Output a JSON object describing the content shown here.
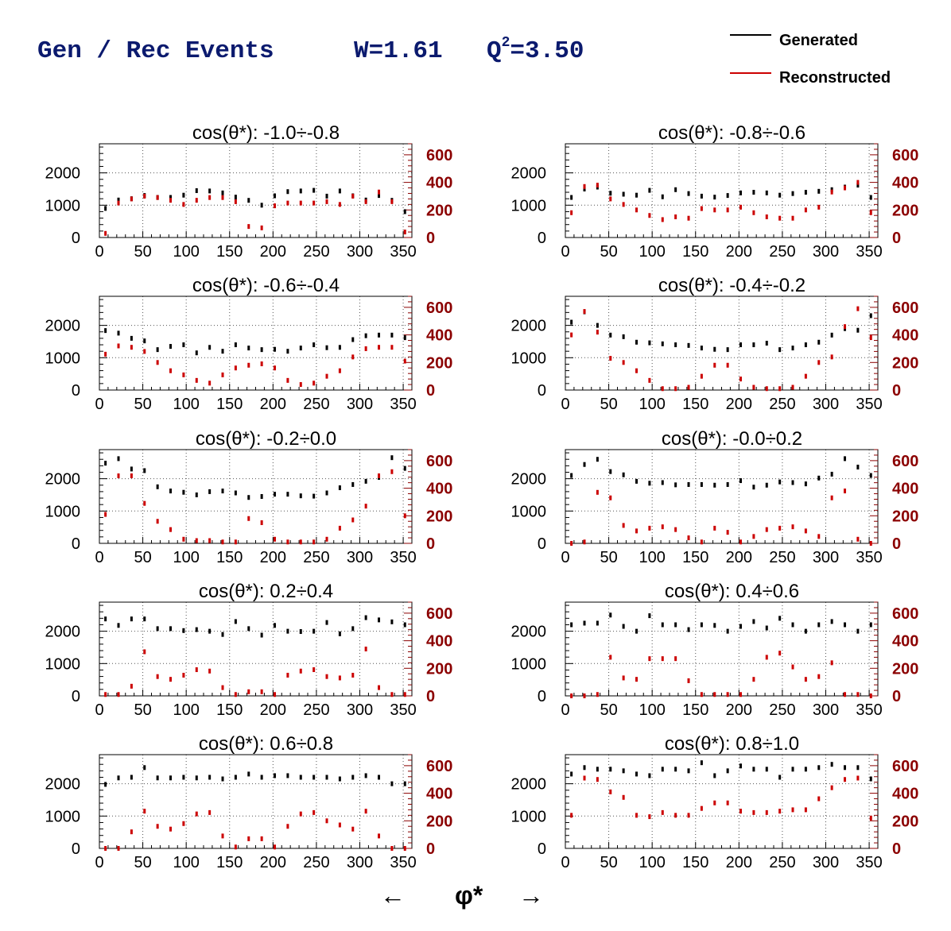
{
  "header": {
    "title_main": "Gen / Rec Events",
    "w_text": "W=1.61",
    "q_prefix": "Q",
    "q_sup": "2",
    "q_value": "=3.50",
    "title_color": "#0b1a6e"
  },
  "legend": {
    "placement": "top-right",
    "items": [
      {
        "label": "Generated",
        "color": "#000000"
      },
      {
        "label": "Reconstructed",
        "color": "#cc0000"
      }
    ]
  },
  "xaxis_footer": {
    "left_arrow": "←",
    "label": "φ*",
    "right_arrow": "→"
  },
  "chart_data": [
    {
      "type": "scatter",
      "title": "cos(θ*): -1.0÷-0.8",
      "xlim": [
        0,
        360
      ],
      "ylim_left": [
        0,
        2900
      ],
      "ylim_right": [
        0,
        680
      ],
      "left_ticks": [
        "0",
        "1000",
        "2000"
      ],
      "right_ticks": [
        "0",
        "200",
        "400",
        "600"
      ],
      "x_ticks": [
        "0",
        "50",
        "100",
        "150",
        "200",
        "250",
        "300",
        "350"
      ],
      "x": [
        7,
        22,
        37,
        52,
        67,
        82,
        97,
        112,
        127,
        142,
        157,
        172,
        187,
        202,
        217,
        232,
        247,
        262,
        277,
        292,
        307,
        322,
        337,
        352
      ],
      "series": [
        {
          "name": "Generated",
          "values": [
            900,
            1160,
            1200,
            1300,
            1240,
            1240,
            1310,
            1450,
            1440,
            1380,
            1250,
            1150,
            1000,
            1290,
            1420,
            1440,
            1460,
            1280,
            1440,
            1290,
            1160,
            1300,
            1150,
            800
          ]
        },
        {
          "name": "Reconstructed",
          "values": [
            30,
            250,
            280,
            300,
            290,
            270,
            240,
            270,
            290,
            290,
            260,
            80,
            70,
            230,
            250,
            250,
            250,
            260,
            240,
            300,
            260,
            330,
            260,
            40
          ]
        }
      ]
    },
    {
      "type": "scatter",
      "title": "cos(θ*): -0.8÷-0.6",
      "xlim": [
        0,
        360
      ],
      "ylim_left": [
        0,
        2900
      ],
      "ylim_right": [
        0,
        680
      ],
      "left_ticks": [
        "0",
        "1000",
        "2000"
      ],
      "right_ticks": [
        "0",
        "200",
        "400",
        "600"
      ],
      "x_ticks": [
        "0",
        "50",
        "100",
        "150",
        "200",
        "250",
        "300",
        "350"
      ],
      "x": [
        7,
        22,
        37,
        52,
        67,
        82,
        97,
        112,
        127,
        142,
        157,
        172,
        187,
        202,
        217,
        232,
        247,
        262,
        277,
        292,
        307,
        322,
        337,
        352
      ],
      "series": [
        {
          "name": "Generated",
          "values": [
            1240,
            1500,
            1560,
            1370,
            1340,
            1310,
            1460,
            1260,
            1480,
            1360,
            1280,
            1250,
            1300,
            1380,
            1400,
            1380,
            1310,
            1360,
            1400,
            1430,
            1480,
            1560,
            1620,
            1240
          ]
        },
        {
          "name": "Reconstructed",
          "values": [
            180,
            370,
            380,
            280,
            240,
            200,
            160,
            130,
            150,
            140,
            210,
            200,
            200,
            220,
            180,
            150,
            140,
            140,
            200,
            220,
            330,
            360,
            400,
            180
          ]
        }
      ]
    },
    {
      "type": "scatter",
      "title": "cos(θ*): -0.6÷-0.4",
      "xlim": [
        0,
        360
      ],
      "ylim_left": [
        0,
        2900
      ],
      "ylim_right": [
        0,
        680
      ],
      "left_ticks": [
        "0",
        "1000",
        "2000"
      ],
      "right_ticks": [
        "0",
        "200",
        "400",
        "600"
      ],
      "x_ticks": [
        "0",
        "50",
        "100",
        "150",
        "200",
        "250",
        "300",
        "350"
      ],
      "x": [
        7,
        22,
        37,
        52,
        67,
        82,
        97,
        112,
        127,
        142,
        157,
        172,
        187,
        202,
        217,
        232,
        247,
        262,
        277,
        292,
        307,
        322,
        337,
        352
      ],
      "series": [
        {
          "name": "Generated",
          "values": [
            1840,
            1760,
            1600,
            1520,
            1250,
            1350,
            1400,
            1150,
            1320,
            1200,
            1400,
            1300,
            1250,
            1260,
            1200,
            1300,
            1400,
            1310,
            1320,
            1560,
            1680,
            1700,
            1700,
            1620
          ]
        },
        {
          "name": "Reconstructed",
          "values": [
            260,
            320,
            310,
            280,
            200,
            140,
            110,
            70,
            50,
            110,
            160,
            180,
            190,
            160,
            70,
            40,
            50,
            100,
            140,
            240,
            300,
            310,
            310,
            210
          ]
        }
      ]
    },
    {
      "type": "scatter",
      "title": "cos(θ*): -0.4÷-0.2",
      "xlim": [
        0,
        360
      ],
      "ylim_left": [
        0,
        2900
      ],
      "ylim_right": [
        0,
        680
      ],
      "left_ticks": [
        "0",
        "1000",
        "2000"
      ],
      "right_ticks": [
        "0",
        "200",
        "400",
        "600"
      ],
      "x_ticks": [
        "0",
        "50",
        "100",
        "150",
        "200",
        "250",
        "300",
        "350"
      ],
      "x": [
        7,
        22,
        37,
        52,
        67,
        82,
        97,
        112,
        127,
        142,
        157,
        172,
        187,
        202,
        217,
        232,
        247,
        262,
        277,
        292,
        307,
        322,
        337,
        352
      ],
      "series": [
        {
          "name": "Generated",
          "values": [
            2100,
            2420,
            2000,
            1700,
            1650,
            1480,
            1460,
            1430,
            1400,
            1380,
            1300,
            1260,
            1250,
            1400,
            1400,
            1450,
            1250,
            1300,
            1400,
            1480,
            1700,
            1900,
            1850,
            2300
          ]
        },
        {
          "name": "Reconstructed",
          "values": [
            400,
            570,
            420,
            230,
            200,
            140,
            70,
            10,
            10,
            20,
            100,
            180,
            180,
            80,
            20,
            10,
            10,
            20,
            100,
            200,
            240,
            460,
            590,
            380
          ]
        }
      ]
    },
    {
      "type": "scatter",
      "title": "cos(θ*): -0.2÷0.0",
      "xlim": [
        0,
        360
      ],
      "ylim_left": [
        0,
        2900
      ],
      "ylim_right": [
        0,
        680
      ],
      "left_ticks": [
        "0",
        "1000",
        "2000"
      ],
      "right_ticks": [
        "0",
        "200",
        "400",
        "600"
      ],
      "x_ticks": [
        "0",
        "50",
        "100",
        "150",
        "200",
        "250",
        "300",
        "350"
      ],
      "x": [
        7,
        22,
        37,
        52,
        67,
        82,
        97,
        112,
        127,
        142,
        157,
        172,
        187,
        202,
        217,
        232,
        247,
        262,
        277,
        292,
        307,
        322,
        337,
        352
      ],
      "series": [
        {
          "name": "Generated",
          "values": [
            2480,
            2620,
            2300,
            2250,
            1750,
            1620,
            1580,
            1500,
            1600,
            1620,
            1560,
            1420,
            1450,
            1520,
            1520,
            1470,
            1460,
            1560,
            1720,
            1820,
            1920,
            2040,
            2650,
            2320
          ]
        },
        {
          "name": "Reconstructed",
          "values": [
            210,
            490,
            490,
            290,
            160,
            100,
            30,
            20,
            20,
            10,
            10,
            180,
            150,
            30,
            10,
            10,
            10,
            30,
            110,
            170,
            270,
            490,
            520,
            200
          ]
        }
      ]
    },
    {
      "type": "scatter",
      "title": "cos(θ*): -0.0÷0.2",
      "xlim": [
        0,
        360
      ],
      "ylim_left": [
        0,
        2900
      ],
      "ylim_right": [
        0,
        680
      ],
      "left_ticks": [
        "0",
        "1000",
        "2000"
      ],
      "right_ticks": [
        "0",
        "200",
        "400",
        "600"
      ],
      "x_ticks": [
        "0",
        "50",
        "100",
        "150",
        "200",
        "250",
        "300",
        "350"
      ],
      "x": [
        7,
        22,
        37,
        52,
        67,
        82,
        97,
        112,
        127,
        142,
        157,
        172,
        187,
        202,
        217,
        232,
        247,
        262,
        277,
        292,
        307,
        322,
        337,
        352
      ],
      "series": [
        {
          "name": "Generated",
          "values": [
            2100,
            2440,
            2600,
            2220,
            2120,
            1920,
            1860,
            1880,
            1810,
            1820,
            1820,
            1800,
            1820,
            1940,
            1740,
            1800,
            1900,
            1880,
            1840,
            2020,
            2140,
            2620,
            2360,
            2100
          ]
        },
        {
          "name": "Reconstructed",
          "values": [
            0,
            10,
            370,
            330,
            130,
            90,
            110,
            120,
            100,
            40,
            10,
            110,
            80,
            10,
            50,
            100,
            110,
            120,
            90,
            50,
            330,
            380,
            30,
            0
          ]
        }
      ]
    },
    {
      "type": "scatter",
      "title": "cos(θ*): 0.2÷0.4",
      "xlim": [
        0,
        360
      ],
      "ylim_left": [
        0,
        2900
      ],
      "ylim_right": [
        0,
        680
      ],
      "left_ticks": [
        "0",
        "1000",
        "2000"
      ],
      "right_ticks": [
        "0",
        "200",
        "400",
        "600"
      ],
      "x_ticks": [
        "0",
        "50",
        "100",
        "150",
        "200",
        "250",
        "300",
        "350"
      ],
      "x": [
        7,
        22,
        37,
        52,
        67,
        82,
        97,
        112,
        127,
        142,
        157,
        172,
        187,
        202,
        217,
        232,
        247,
        262,
        277,
        292,
        307,
        322,
        337,
        352
      ],
      "series": [
        {
          "name": "Generated",
          "values": [
            2380,
            2180,
            2380,
            2380,
            2080,
            2080,
            2020,
            2050,
            2000,
            1900,
            2300,
            2080,
            1880,
            2180,
            2000,
            1990,
            2000,
            2270,
            1920,
            2080,
            2420,
            2350,
            2290,
            2200
          ]
        },
        {
          "name": "Reconstructed",
          "values": [
            10,
            10,
            70,
            320,
            140,
            120,
            150,
            190,
            180,
            60,
            10,
            30,
            30,
            10,
            150,
            180,
            190,
            140,
            130,
            150,
            340,
            60,
            10,
            10
          ]
        }
      ]
    },
    {
      "type": "scatter",
      "title": "cos(θ*): 0.4÷0.6",
      "xlim": [
        0,
        360
      ],
      "ylim_left": [
        0,
        2900
      ],
      "ylim_right": [
        0,
        680
      ],
      "left_ticks": [
        "0",
        "1000",
        "2000"
      ],
      "right_ticks": [
        "0",
        "200",
        "400",
        "600"
      ],
      "x_ticks": [
        "0",
        "50",
        "100",
        "150",
        "200",
        "250",
        "300",
        "350"
      ],
      "x": [
        7,
        22,
        37,
        52,
        67,
        82,
        97,
        112,
        127,
        142,
        157,
        172,
        187,
        202,
        217,
        232,
        247,
        262,
        277,
        292,
        307,
        322,
        337,
        352
      ],
      "series": [
        {
          "name": "Generated",
          "values": [
            2200,
            2250,
            2250,
            2500,
            2150,
            2000,
            2480,
            2200,
            2200,
            2050,
            2200,
            2180,
            2000,
            2150,
            2300,
            2100,
            2400,
            2200,
            2000,
            2200,
            2300,
            2200,
            2000,
            2200
          ]
        },
        {
          "name": "Reconstructed",
          "values": [
            0,
            0,
            10,
            280,
            130,
            120,
            270,
            270,
            270,
            110,
            10,
            10,
            10,
            10,
            120,
            280,
            310,
            210,
            120,
            140,
            240,
            10,
            10,
            0
          ]
        }
      ]
    },
    {
      "type": "scatter",
      "title": "cos(θ*): 0.6÷0.8",
      "xlim": [
        0,
        360
      ],
      "ylim_left": [
        0,
        2900
      ],
      "ylim_right": [
        0,
        680
      ],
      "left_ticks": [
        "0",
        "1000",
        "2000"
      ],
      "right_ticks": [
        "0",
        "200",
        "400",
        "600"
      ],
      "x_ticks": [
        "0",
        "50",
        "100",
        "150",
        "200",
        "250",
        "300",
        "350"
      ],
      "x": [
        7,
        22,
        37,
        52,
        67,
        82,
        97,
        112,
        127,
        142,
        157,
        172,
        187,
        202,
        217,
        232,
        247,
        262,
        277,
        292,
        307,
        322,
        337,
        352
      ],
      "series": [
        {
          "name": "Generated",
          "values": [
            1980,
            2180,
            2200,
            2500,
            2180,
            2180,
            2200,
            2180,
            2200,
            2150,
            2200,
            2300,
            2200,
            2250,
            2250,
            2200,
            2200,
            2200,
            2150,
            2200,
            2250,
            2200,
            2000,
            2000
          ]
        },
        {
          "name": "Reconstructed",
          "values": [
            0,
            0,
            120,
            270,
            160,
            140,
            180,
            250,
            260,
            90,
            10,
            70,
            70,
            10,
            160,
            250,
            260,
            200,
            170,
            140,
            270,
            90,
            0,
            0
          ]
        }
      ]
    },
    {
      "type": "scatter",
      "title": "cos(θ*): 0.8÷1.0",
      "xlim": [
        0,
        360
      ],
      "ylim_left": [
        0,
        2900
      ],
      "ylim_right": [
        0,
        680
      ],
      "left_ticks": [
        "0",
        "1000",
        "2000"
      ],
      "right_ticks": [
        "0",
        "200",
        "400",
        "600"
      ],
      "x_ticks": [
        "0",
        "50",
        "100",
        "150",
        "200",
        "250",
        "300",
        "350"
      ],
      "x": [
        7,
        22,
        37,
        52,
        67,
        82,
        97,
        112,
        127,
        142,
        157,
        172,
        187,
        202,
        217,
        232,
        247,
        262,
        277,
        292,
        307,
        322,
        337,
        352
      ],
      "series": [
        {
          "name": "Generated",
          "values": [
            2300,
            2500,
            2450,
            2450,
            2400,
            2300,
            2250,
            2450,
            2450,
            2400,
            2650,
            2250,
            2400,
            2550,
            2450,
            2450,
            2200,
            2450,
            2450,
            2500,
            2600,
            2500,
            2500,
            2150
          ]
        },
        {
          "name": "Reconstructed",
          "values": [
            240,
            510,
            500,
            410,
            370,
            240,
            230,
            260,
            240,
            240,
            290,
            330,
            330,
            270,
            260,
            260,
            270,
            280,
            280,
            360,
            440,
            500,
            510,
            220
          ]
        }
      ]
    }
  ]
}
